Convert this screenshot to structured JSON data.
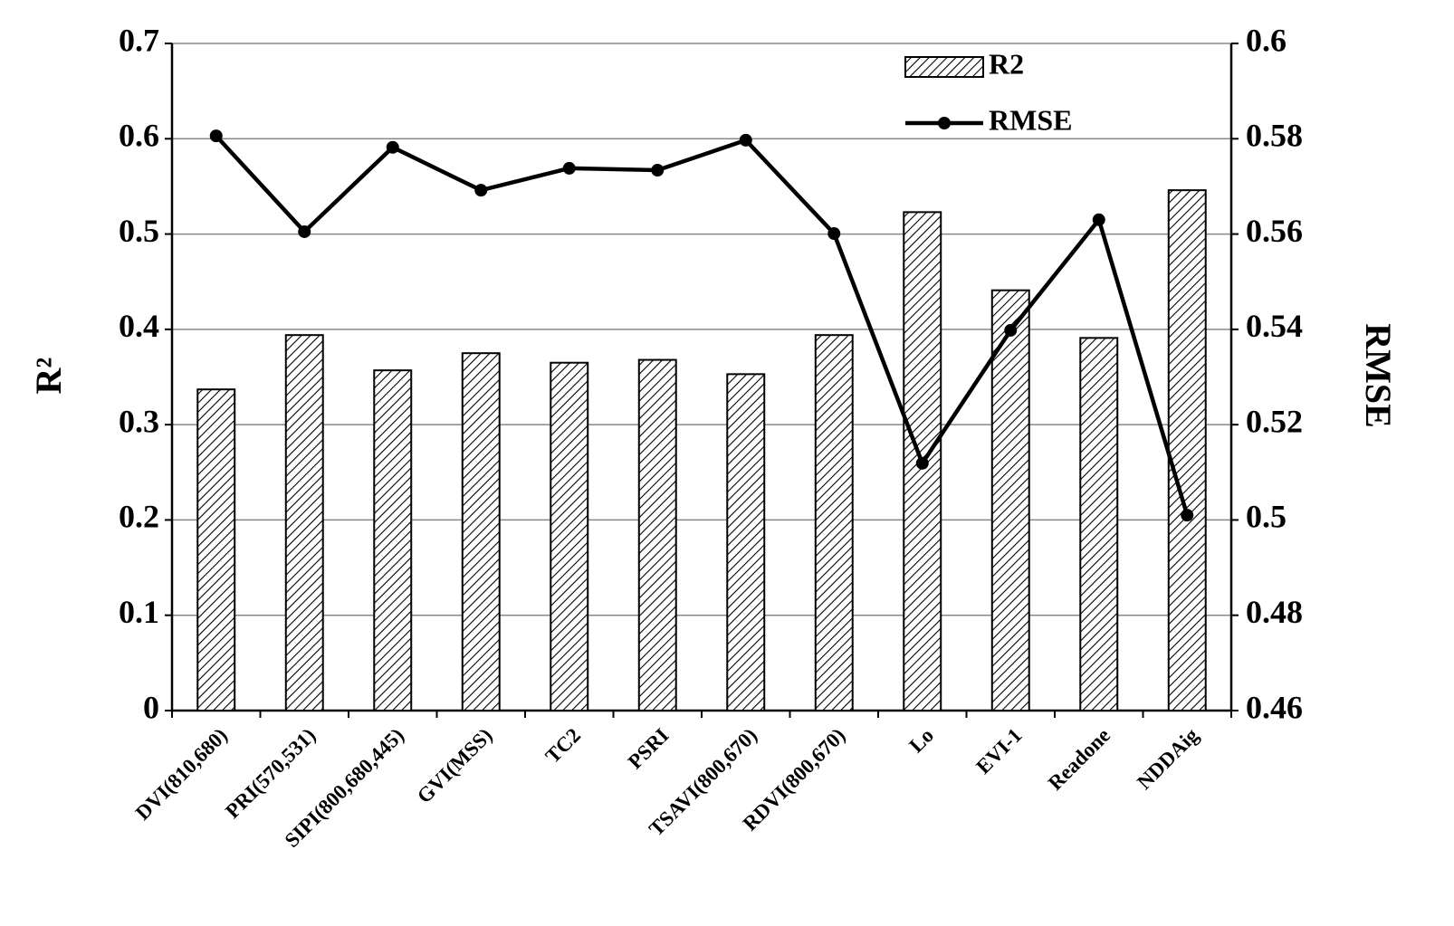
{
  "chart_data": {
    "type": "bar",
    "y_label": "R²",
    "y2_label": "RMSE",
    "categories": [
      "DVI(810,680)",
      "PRI(570,531)",
      "SIPI(800,680,445)",
      "GVI(MSS)",
      "TC2",
      "PSRI",
      "TSAVI(800,670)",
      "RDVI(800,670)",
      "Lo",
      "EVI-1",
      "Readone",
      "NDDAig"
    ],
    "series": [
      {
        "name": "R2",
        "type": "bar",
        "color": "#000000",
        "values": [
          0.337,
          0.394,
          0.357,
          0.375,
          0.365,
          0.368,
          0.353,
          0.394,
          0.523,
          0.441,
          0.391,
          0.546
        ]
      },
      {
        "name": "RMSE",
        "type": "line",
        "axis": "y2",
        "color": "#000000",
        "values": [
          0.5806,
          0.5605,
          0.5782,
          0.5692,
          0.5738,
          0.5734,
          0.5797,
          0.5601,
          0.5119,
          0.5398,
          0.563,
          0.501
        ]
      }
    ],
    "ylim": [
      0,
      0.7
    ],
    "yticks": [
      0,
      0.1,
      0.2,
      0.3,
      0.4,
      0.5,
      0.6,
      0.7
    ],
    "y2lim": [
      0.46,
      0.6
    ],
    "y2ticks": [
      0.46,
      0.48,
      0.5,
      0.52,
      0.54,
      0.56,
      0.58,
      0.6
    ],
    "grid": true,
    "legend": "upper right"
  }
}
